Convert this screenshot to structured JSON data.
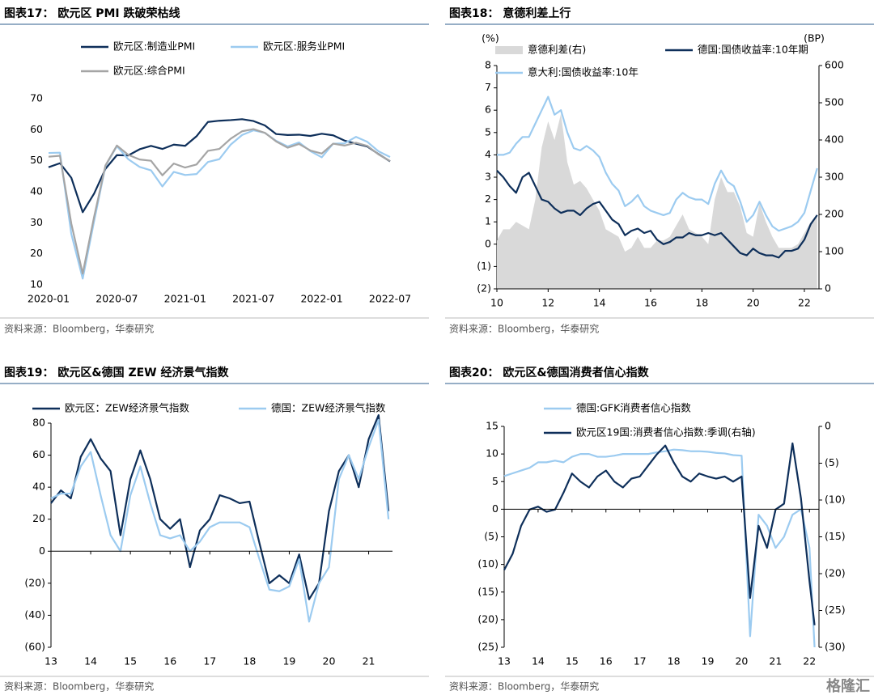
{
  "chart_data": [
    {
      "type": "line",
      "title": "图表17：  欧元区 PMI 跌破荣枯线",
      "source": "资料来源：Bloomberg，华泰研究",
      "categories": [
        "2020-01",
        null,
        null,
        null,
        null,
        null,
        "2020-07",
        null,
        null,
        null,
        null,
        null,
        "2021-01",
        null,
        null,
        null,
        null,
        null,
        "2021-07",
        null,
        null,
        null,
        null,
        null,
        "2022-01",
        null,
        null,
        null,
        null,
        null,
        "2022-07"
      ],
      "ylim": [
        10,
        70
      ],
      "yticks": [
        10,
        20,
        30,
        40,
        50,
        60,
        70
      ],
      "series": [
        {
          "name": "欧元区:制造业PMI",
          "color": "#0e2f5a",
          "values": [
            47.9,
            49.2,
            44.5,
            33.4,
            39.4,
            47.4,
            51.8,
            51.7,
            53.7,
            54.8,
            53.8,
            55.2,
            54.8,
            57.9,
            62.5,
            62.9,
            63.1,
            63.4,
            62.8,
            61.4,
            58.6,
            58.3,
            58.4,
            58.0,
            58.7,
            58.2,
            56.5,
            55.5,
            54.6,
            52.1,
            49.8
          ]
        },
        {
          "name": "欧元区:服务业PMI",
          "color": "#9ccbf0",
          "values": [
            52.5,
            52.6,
            26.4,
            12.0,
            30.5,
            48.3,
            54.7,
            50.5,
            48.0,
            46.9,
            41.7,
            46.4,
            45.4,
            45.7,
            49.6,
            50.5,
            55.2,
            58.3,
            59.8,
            59.0,
            56.4,
            54.6,
            55.9,
            53.1,
            51.1,
            55.5,
            55.6,
            57.7,
            56.1,
            53.0,
            51.2
          ]
        },
        {
          "name": "欧元区:综合PMI",
          "color": "#a5a5a5",
          "values": [
            51.3,
            51.6,
            29.7,
            13.6,
            31.9,
            48.5,
            54.9,
            51.9,
            50.4,
            50.0,
            45.3,
            49.1,
            47.8,
            48.8,
            53.2,
            53.8,
            57.1,
            59.5,
            60.2,
            59.0,
            56.2,
            54.2,
            55.4,
            53.3,
            52.3,
            55.5,
            54.9,
            55.8,
            54.8,
            52.0,
            49.9
          ]
        }
      ]
    },
    {
      "type": "line",
      "title": "图表18：  意德利差上行",
      "source": "资料来源：Bloomberg，华泰研究",
      "ylabel": "(%)",
      "y2label": "(BP)",
      "x": [
        2010,
        2010.25,
        2010.5,
        2010.75,
        2011,
        2011.25,
        2011.5,
        2011.75,
        2012,
        2012.25,
        2012.5,
        2012.75,
        2013,
        2013.25,
        2013.5,
        2013.75,
        2014,
        2014.25,
        2014.5,
        2014.75,
        2015,
        2015.25,
        2015.5,
        2015.75,
        2016,
        2016.25,
        2016.5,
        2016.75,
        2017,
        2017.25,
        2017.5,
        2017.75,
        2018,
        2018.25,
        2018.5,
        2018.75,
        2019,
        2019.25,
        2019.5,
        2019.75,
        2020,
        2020.25,
        2020.5,
        2020.75,
        2021,
        2021.25,
        2021.5,
        2021.75,
        2022,
        2022.25,
        2022.5
      ],
      "xlim": [
        2010,
        2022.57
      ],
      "xticks": [
        {
          "value": 2010,
          "label": "10"
        },
        {
          "value": 2012,
          "label": "12"
        },
        {
          "value": 2014,
          "label": "14"
        },
        {
          "value": 2016,
          "label": "16"
        },
        {
          "value": 2018,
          "label": "18"
        },
        {
          "value": 2020,
          "label": "20"
        },
        {
          "value": 2022,
          "label": "22"
        }
      ],
      "ylim": [
        -2,
        8
      ],
      "yticks": [
        {
          "value": -2,
          "label": "(2)"
        },
        {
          "value": -1,
          "label": "(1)"
        },
        0,
        1,
        2,
        3,
        4,
        5,
        6,
        7,
        8
      ],
      "y2lim": [
        0,
        600
      ],
      "y2ticks": [
        0,
        100,
        200,
        300,
        400,
        500,
        600
      ],
      "series": [
        {
          "name": "意德利差(右)",
          "color": "#d9d9d9",
          "style": "area",
          "axis": "y2",
          "values": [
            130,
            160,
            160,
            180,
            170,
            160,
            240,
            380,
            450,
            400,
            470,
            340,
            280,
            290,
            270,
            240,
            210,
            160,
            150,
            140,
            100,
            110,
            140,
            110,
            110,
            130,
            130,
            140,
            170,
            200,
            160,
            150,
            140,
            120,
            240,
            300,
            260,
            260,
            220,
            150,
            140,
            230,
            180,
            140,
            110,
            110,
            110,
            120,
            150,
            180,
            200
          ]
        },
        {
          "name": "德国:国债收益率:10年期",
          "color": "#0e2f5a",
          "values": [
            3.3,
            3.0,
            2.6,
            2.3,
            3.0,
            3.2,
            2.6,
            2.0,
            1.9,
            1.6,
            1.4,
            1.5,
            1.5,
            1.3,
            1.6,
            1.8,
            1.9,
            1.5,
            1.1,
            0.9,
            0.4,
            0.6,
            0.7,
            0.5,
            0.6,
            0.2,
            0.0,
            0.1,
            0.3,
            0.3,
            0.5,
            0.4,
            0.4,
            0.5,
            0.4,
            0.5,
            0.2,
            -0.1,
            -0.4,
            -0.5,
            -0.2,
            -0.4,
            -0.5,
            -0.5,
            -0.6,
            -0.3,
            -0.3,
            -0.2,
            0.2,
            0.9,
            1.3
          ]
        },
        {
          "name": "意大利:国债收益率:10年",
          "color": "#9ccbf0",
          "values": [
            4.0,
            4.0,
            4.1,
            4.5,
            4.8,
            4.8,
            5.4,
            6.0,
            6.6,
            5.8,
            6.0,
            5.0,
            4.3,
            4.2,
            4.4,
            4.2,
            3.9,
            3.2,
            2.7,
            2.4,
            1.7,
            1.9,
            2.2,
            1.7,
            1.5,
            1.4,
            1.3,
            1.4,
            2.0,
            2.3,
            2.1,
            2.0,
            2.0,
            1.8,
            2.7,
            3.3,
            2.8,
            2.6,
            1.9,
            1.0,
            1.3,
            1.9,
            1.3,
            0.8,
            0.6,
            0.7,
            0.8,
            1.0,
            1.4,
            2.4,
            3.4
          ]
        }
      ]
    },
    {
      "type": "line",
      "title": "图表19：  欧元区&德国 ZEW 经济景气指数",
      "source": "资料来源：Bloomberg，华泰研究",
      "x": [
        2013,
        2013.25,
        2013.5,
        2013.75,
        2014,
        2014.25,
        2014.5,
        2014.75,
        2015,
        2015.25,
        2015.5,
        2015.75,
        2016,
        2016.25,
        2016.5,
        2016.75,
        2017,
        2017.25,
        2017.5,
        2017.75,
        2018,
        2018.25,
        2018.5,
        2018.75,
        2019,
        2019.25,
        2019.5,
        2019.75,
        2020,
        2020.25,
        2020.5,
        2020.75,
        2021,
        2021.25,
        2021.5
      ],
      "xlim": [
        2013,
        2021.6
      ],
      "xticks": [
        {
          "value": 2013,
          "label": "13"
        },
        {
          "value": 2014,
          "label": "14"
        },
        {
          "value": 2015,
          "label": "15"
        },
        {
          "value": 2016,
          "label": "16"
        },
        {
          "value": 2017,
          "label": "17"
        },
        {
          "value": 2018,
          "label": "18"
        },
        {
          "value": 2019,
          "label": "19"
        },
        {
          "value": 2020,
          "label": "20"
        },
        {
          "value": 2021,
          "label": "21"
        }
      ],
      "ylim": [
        -60,
        80
      ],
      "yticks": [
        {
          "value": -60,
          "label": "(60)"
        },
        {
          "value": -40,
          "label": "(40)"
        },
        {
          "value": -20,
          "label": "(20)"
        },
        0,
        20,
        40,
        60,
        80
      ],
      "zero_line": true,
      "series": [
        {
          "name": "欧元区：ZEW经济景气指数",
          "color": "#0e2f5a",
          "values": [
            30,
            38,
            33,
            59,
            70,
            58,
            50,
            10,
            45,
            63,
            45,
            20,
            14,
            20,
            -10,
            13,
            20,
            35,
            33,
            30,
            31,
            5,
            -20,
            -15,
            -20,
            -2,
            -30,
            -20,
            25,
            50,
            60,
            40,
            70,
            85,
            25
          ]
        },
        {
          "name": "德国：ZEW经济景气指数",
          "color": "#9ccbf0",
          "values": [
            33,
            36,
            36,
            53,
            62,
            35,
            10,
            0,
            35,
            53,
            30,
            10,
            8,
            10,
            0,
            6,
            15,
            18,
            18,
            18,
            15,
            -5,
            -24,
            -25,
            -22,
            -5,
            -44,
            -20,
            -10,
            45,
            60,
            45,
            65,
            82,
            20
          ]
        }
      ]
    },
    {
      "type": "line",
      "title": "图表20：  欧元区&德国消费者信心指数",
      "source": "资料来源：Bloomberg，华泰研究",
      "watermark": "格隆汇",
      "x": [
        2013,
        2013.25,
        2013.5,
        2013.75,
        2014,
        2014.25,
        2014.5,
        2014.75,
        2015,
        2015.25,
        2015.5,
        2015.75,
        2016,
        2016.25,
        2016.5,
        2016.75,
        2017,
        2017.25,
        2017.5,
        2017.75,
        2018,
        2018.25,
        2018.5,
        2018.75,
        2019,
        2019.25,
        2019.5,
        2019.75,
        2020,
        2020.25,
        2020.5,
        2020.75,
        2021,
        2021.25,
        2021.5,
        2021.75,
        2022,
        2022.15
      ],
      "xlim": [
        2013,
        2022.28
      ],
      "xticks": [
        {
          "value": 2013,
          "label": "13"
        },
        {
          "value": 2014,
          "label": "14"
        },
        {
          "value": 2015,
          "label": "15"
        },
        {
          "value": 2016,
          "label": "16"
        },
        {
          "value": 2017,
          "label": "17"
        },
        {
          "value": 2018,
          "label": "18"
        },
        {
          "value": 2019,
          "label": "19"
        },
        {
          "value": 2020,
          "label": "20"
        },
        {
          "value": 2021,
          "label": "21"
        },
        {
          "value": 2022,
          "label": "22"
        }
      ],
      "ylim": [
        -25,
        15
      ],
      "yticks": [
        {
          "value": -25,
          "label": "(25)"
        },
        {
          "value": -20,
          "label": "(20)"
        },
        {
          "value": -15,
          "label": "(15)"
        },
        {
          "value": -10,
          "label": "(10)"
        },
        {
          "value": -5,
          "label": "(5)"
        },
        0,
        5,
        10,
        15
      ],
      "y2lim": [
        -30,
        0
      ],
      "y2ticks": [
        {
          "value": -30,
          "label": "(30)"
        },
        {
          "value": -25,
          "label": "(25)"
        },
        {
          "value": -20,
          "label": "(20)"
        },
        {
          "value": -15,
          "label": "(15)"
        },
        {
          "value": -10,
          "label": "(10)"
        },
        {
          "value": -5,
          "label": "(5)"
        },
        0
      ],
      "zero_line": true,
      "series": [
        {
          "name": "德国:GFK消费者信心指数",
          "color": "#9ccbf0",
          "values": [
            6,
            6.5,
            7,
            7.5,
            8.5,
            8.5,
            8.8,
            8.5,
            9.5,
            10,
            10,
            9.5,
            9.5,
            9.7,
            10,
            10,
            10,
            10,
            10.3,
            10.5,
            10.8,
            10.7,
            10.5,
            10.5,
            10.4,
            10.2,
            10.1,
            9.8,
            9.7,
            -23,
            -1,
            -3,
            -7,
            -5,
            -1,
            0,
            -7,
            -25
          ]
        },
        {
          "name": "欧元区19国:消费者信心指数:季调(右轴)",
          "color": "#0e2f5a",
          "axis": "y2",
          "values": [
            -19.5,
            -17.3,
            -13.5,
            -11.3,
            -10.9,
            -11.6,
            -11.3,
            -9,
            -6.4,
            -7.5,
            -8.3,
            -6.8,
            -6,
            -7.5,
            -8.3,
            -7.1,
            -6.8,
            -5.3,
            -3.8,
            -2.6,
            -4.9,
            -6.8,
            -7.5,
            -6.4,
            -6.8,
            -7.1,
            -6.8,
            -7.5,
            -6.8,
            -23.3,
            -13.5,
            -16.5,
            -11.3,
            -10.5,
            -2.3,
            -9.8,
            -21,
            -27
          ]
        }
      ]
    }
  ]
}
